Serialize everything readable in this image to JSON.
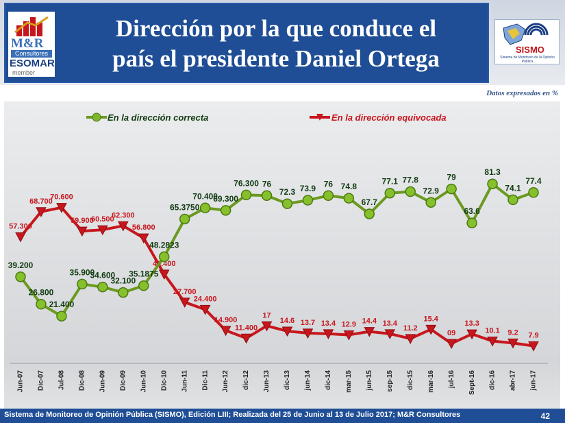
{
  "header": {
    "title_line1": "Dirección por la que conduce el",
    "title_line2": "país el presidente Daniel Ortega",
    "logo_left_line1": "M&R",
    "logo_left_line2": "Consultores",
    "logo_left_line3": "ESOMAR",
    "logo_left_line4": "member",
    "logo_right_name": "SISMO",
    "logo_right_sub": "Sistema de Monitoreo de la Opinión Pública"
  },
  "units_note": "Datos expresados en  %",
  "legend": {
    "correct": "En la dirección correcta",
    "wrong": "En la dirección equivocada"
  },
  "colors": {
    "correct": "#6a9a1f",
    "wrong": "#c8161d",
    "correct_label": "#123c12",
    "wrong_label": "#c8161d"
  },
  "chart_data": {
    "type": "line",
    "categories": [
      "Jun-07",
      "Dic-07",
      "Jul-08",
      "Dic-08",
      "Jun-09",
      "Dic-09",
      "Jun-10",
      "Dic-10",
      "Jun-11",
      "Dic-11",
      "Jun-12",
      "dic-12",
      "Jun-13",
      "dic-13",
      "jun-14",
      "dic-14",
      "mar-15",
      "jun-15",
      "sep-15",
      "dic-15",
      "mar-16",
      "jul-16",
      "Sept-16",
      "dic-16",
      "abr-17",
      "jun-17"
    ],
    "series": [
      {
        "name": "En la dirección correcta",
        "values": [
          39.2,
          26.8,
          21.4,
          35.9,
          34.6,
          32.1,
          35.1875,
          48.2823,
          65.375,
          70.4,
          69.3,
          76.3,
          76,
          72.3,
          73.9,
          76,
          74.8,
          67.7,
          77.1,
          77.8,
          72.9,
          79,
          63.6,
          81.3,
          74.1,
          77.4
        ],
        "labels": [
          "39.200",
          "26.800",
          "21.400",
          "35.900",
          "34.600",
          "32.100",
          "35.1875",
          "48.2823",
          "65.3750",
          "70.400",
          "69.300",
          "76.300",
          "76",
          "72.3",
          "73.9",
          "76",
          "74.8",
          "67.7",
          "77.1",
          "77.8",
          "72.9",
          "79",
          "63.6",
          "81.3",
          "74.1",
          "77.4"
        ]
      },
      {
        "name": "En la dirección equivocada",
        "values": [
          57.3,
          68.7,
          70.6,
          59.9,
          60.5,
          62.3,
          56.8,
          40.4,
          27.7,
          24.4,
          14.9,
          11.4,
          17,
          14.6,
          13.7,
          13.4,
          12.9,
          14.4,
          13.4,
          11.2,
          15.4,
          9,
          13.3,
          10.1,
          9.2,
          7.9
        ],
        "labels": [
          "57.300",
          "68.700",
          "70.600",
          "59.900",
          "60.500",
          "62.300",
          "56.800",
          "40.400",
          "27.700",
          "24.400",
          "14.900",
          "11.400",
          "17",
          "14.6",
          "13.7",
          "13.4",
          "12.9",
          "14.4",
          "13.4",
          "11.2",
          "15.4",
          "09",
          "13.3",
          "10.1",
          "9.2",
          "7.9"
        ]
      }
    ],
    "ylim": [
      0,
      90
    ],
    "grid": false,
    "legend_position": "top"
  },
  "footer": {
    "text": "Sistema de Monitoreo de Opinión Pública (SISMO), Edición LIII; Realizada del 25 de Junio al 13 de Julio 2017; M&R Consultores",
    "page": "42"
  }
}
